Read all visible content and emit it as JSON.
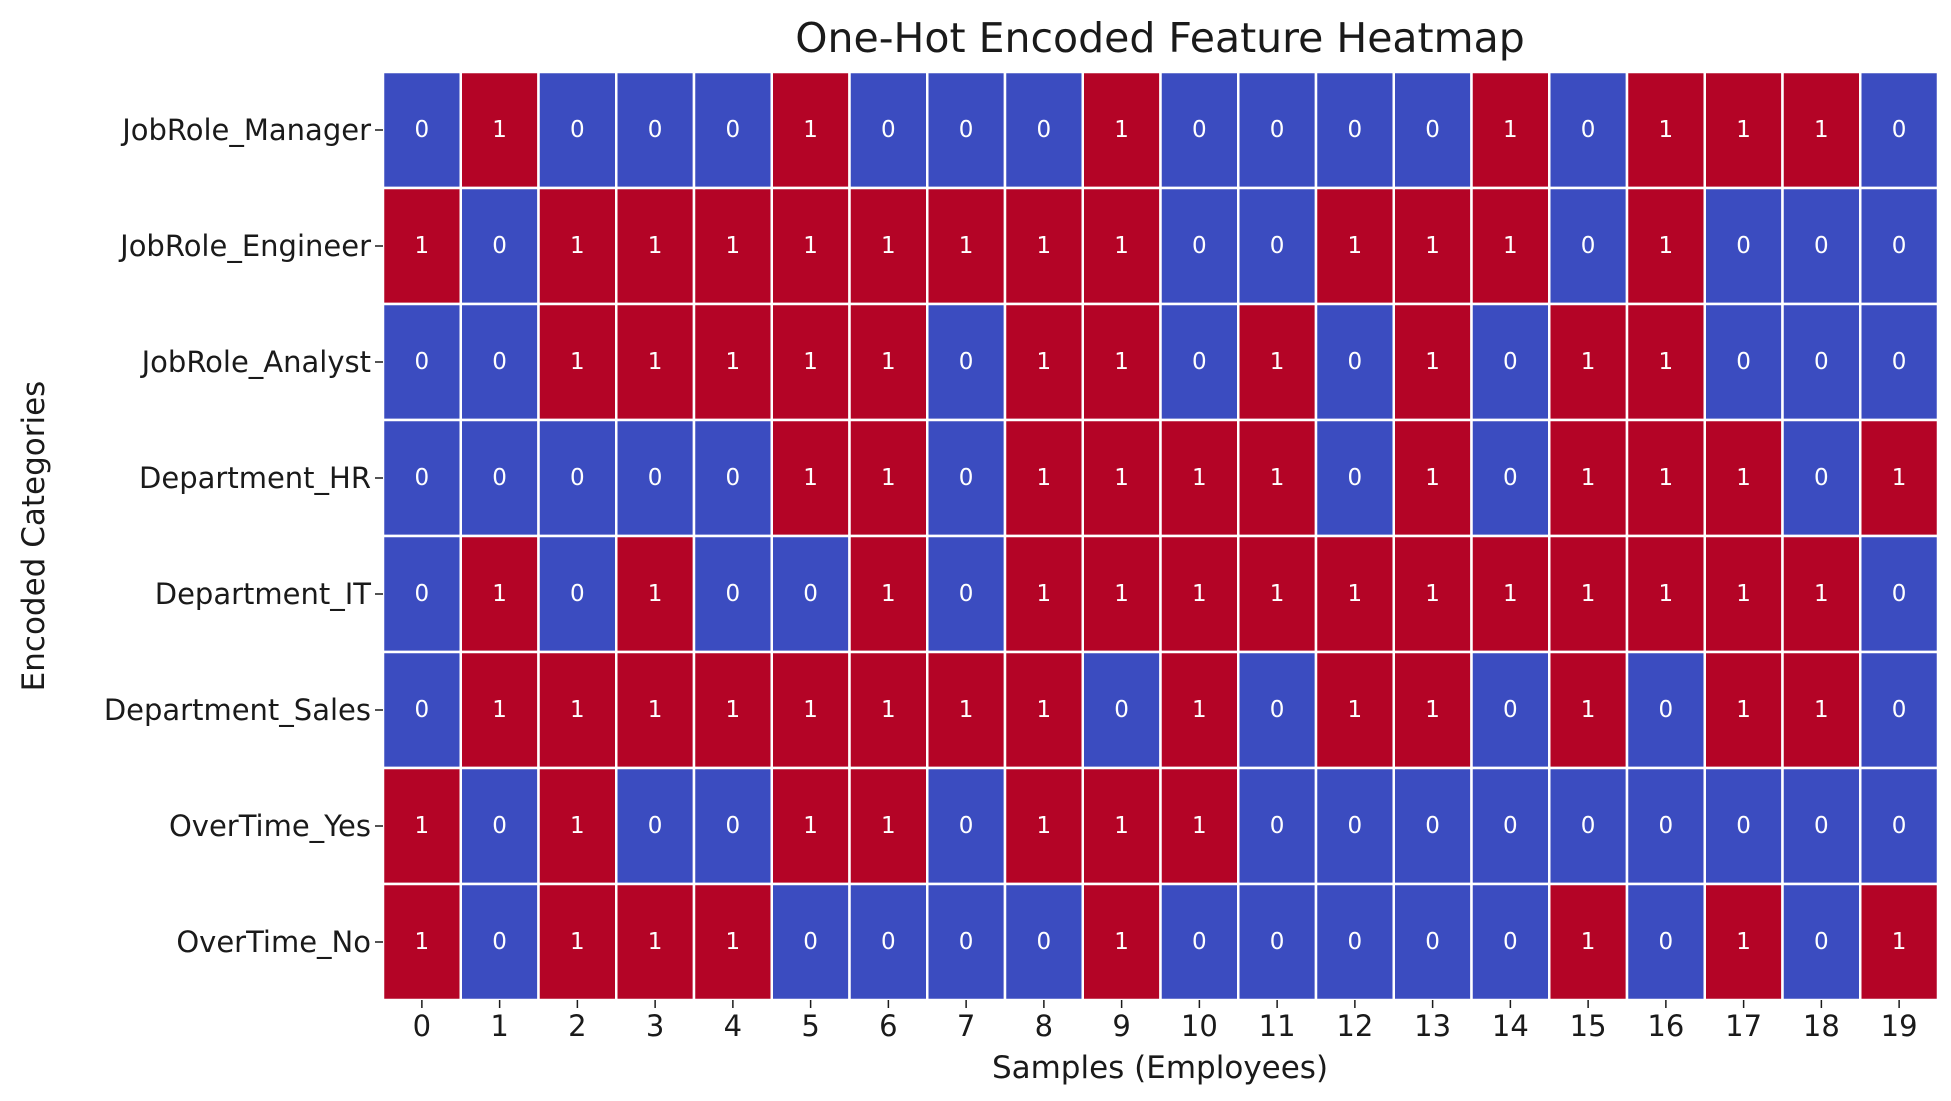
{
  "chart_data": {
    "type": "heatmap",
    "title": "One-Hot Encoded Feature Heatmap",
    "xlabel": "Samples (Employees)",
    "ylabel": "Encoded Categories",
    "x_categories": [
      "0",
      "1",
      "2",
      "3",
      "4",
      "5",
      "6",
      "7",
      "8",
      "9",
      "10",
      "11",
      "12",
      "13",
      "14",
      "15",
      "16",
      "17",
      "18",
      "19"
    ],
    "y_categories": [
      "JobRole_Manager",
      "JobRole_Engineer",
      "JobRole_Analyst",
      "Department_HR",
      "Department_IT",
      "Department_Sales",
      "OverTime_Yes",
      "OverTime_No"
    ],
    "values": [
      [
        0,
        1,
        0,
        0,
        0,
        1,
        0,
        0,
        0,
        1,
        0,
        0,
        0,
        0,
        1,
        0,
        1,
        1,
        1,
        0
      ],
      [
        1,
        0,
        1,
        1,
        1,
        1,
        1,
        1,
        1,
        1,
        0,
        0,
        1,
        1,
        1,
        0,
        1,
        0,
        0,
        0
      ],
      [
        0,
        0,
        1,
        1,
        1,
        1,
        1,
        0,
        1,
        1,
        0,
        1,
        0,
        1,
        0,
        1,
        1,
        0,
        0,
        0
      ],
      [
        0,
        0,
        0,
        0,
        0,
        1,
        1,
        0,
        1,
        1,
        1,
        1,
        0,
        1,
        0,
        1,
        1,
        1,
        0,
        1
      ],
      [
        0,
        1,
        0,
        1,
        0,
        0,
        1,
        0,
        1,
        1,
        1,
        1,
        1,
        1,
        1,
        1,
        1,
        1,
        1,
        0
      ],
      [
        0,
        1,
        1,
        1,
        1,
        1,
        1,
        1,
        1,
        0,
        1,
        0,
        1,
        1,
        0,
        1,
        0,
        1,
        1,
        0
      ],
      [
        1,
        0,
        1,
        0,
        0,
        1,
        1,
        0,
        1,
        1,
        1,
        0,
        0,
        0,
        0,
        0,
        0,
        0,
        0,
        0
      ],
      [
        1,
        0,
        1,
        1,
        1,
        0,
        0,
        0,
        0,
        1,
        0,
        0,
        0,
        0,
        0,
        1,
        0,
        1,
        0,
        1
      ]
    ],
    "colormap": "coolwarm",
    "colors": {
      "0": "#3b4cc0",
      "1": "#b40426"
    },
    "annotations": true,
    "colorbar": false
  }
}
